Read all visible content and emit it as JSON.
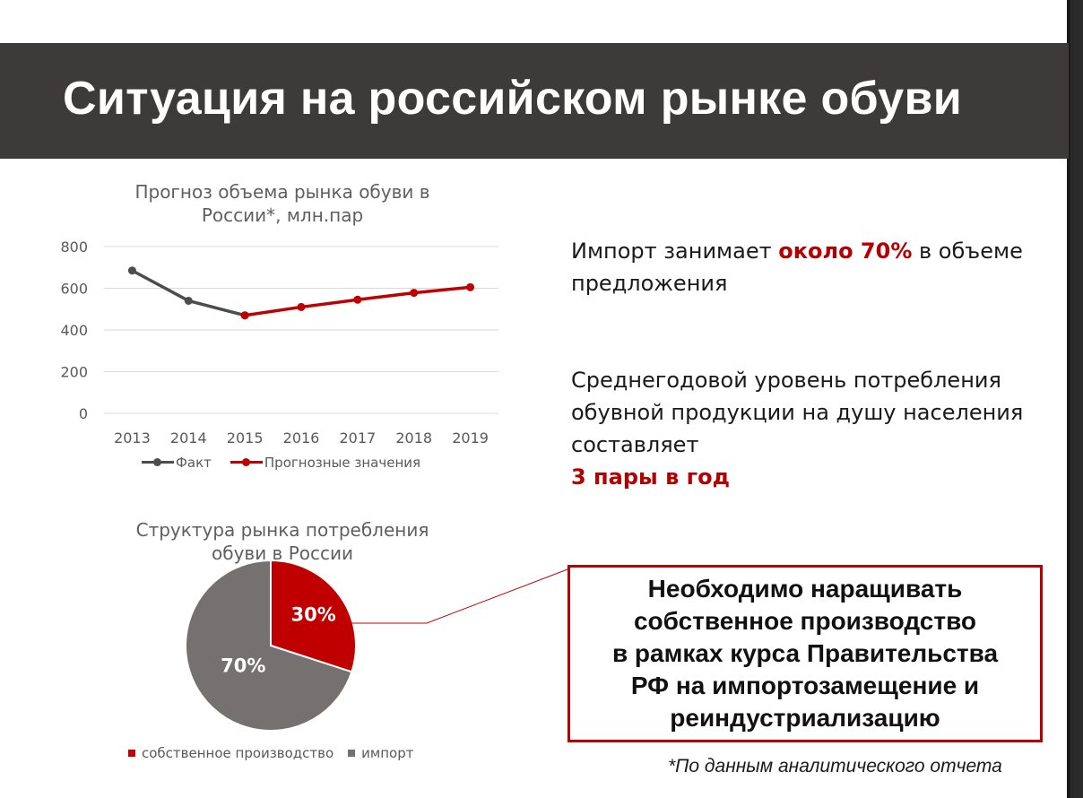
{
  "header": {
    "title": "Ситуация на российском рынке обуви"
  },
  "colors": {
    "accent": "#c00000",
    "fact": "#4d4d4d",
    "import": "#767171",
    "header_bg": "#3d3b3a"
  },
  "chart_data": [
    {
      "type": "line",
      "title_lines": [
        "Прогноз объема рынка обуви в",
        "России*, млн.пар"
      ],
      "x": [
        "2013",
        "2014",
        "2015",
        "2016",
        "2017",
        "2018",
        "2019"
      ],
      "ylim": [
        0,
        800
      ],
      "yticks": [
        "800",
        "600",
        "400",
        "200",
        "0"
      ],
      "grid": true,
      "legend_position": "bottom",
      "series": [
        {
          "name": "Факт",
          "color": "#4d4d4d",
          "values": [
            685,
            540,
            470,
            null,
            null,
            null,
            null
          ]
        },
        {
          "name": "Прогнозные значения",
          "color": "#c00000",
          "values": [
            null,
            null,
            470,
            510,
            545,
            578,
            605
          ]
        }
      ]
    },
    {
      "type": "pie",
      "title_lines": [
        "Структура рынка потребления",
        "обуви в России"
      ],
      "legend_position": "bottom",
      "slices": [
        {
          "name": "собственное производство",
          "value": 30,
          "label": "30%",
          "color": "#c00000"
        },
        {
          "name": "импорт",
          "value": 70,
          "label": "70%",
          "color": "#767171"
        }
      ]
    }
  ],
  "text1": {
    "before": "Импорт занимает ",
    "highlight": "около 70%",
    "after": " в объеме предложения"
  },
  "text2": {
    "lines": [
      "Среднегодовой уровень потребления",
      "обувной продукции на душу населения",
      "составляет"
    ],
    "highlight": "3 пары в год"
  },
  "callout": {
    "lines": [
      "Необходимо наращивать",
      "собственное производство",
      "в рамках курса Правительства",
      "РФ на импортозамещение и",
      "реиндустриализацию"
    ]
  },
  "footnote": "*По данным аналитического отчета"
}
